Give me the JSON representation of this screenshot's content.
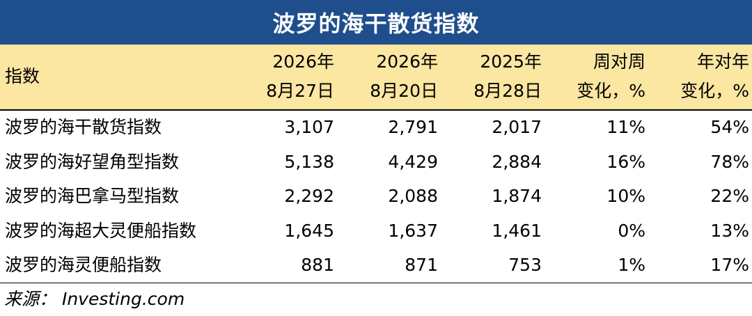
{
  "title": "波罗的海干散货指数",
  "header": {
    "label": "指数",
    "columns": [
      {
        "line1": "2026年",
        "line2": "8月27日"
      },
      {
        "line1": "2026年",
        "line2": "8月20日"
      },
      {
        "line1": "2025年",
        "line2": "8月28日"
      },
      {
        "line1": "周对周",
        "line2": "变化，%"
      },
      {
        "line1": "年对年",
        "line2": "变化，%"
      }
    ]
  },
  "rows": [
    {
      "name": "波罗的海干散货指数",
      "values": [
        "3,107",
        "2,791",
        "2,017",
        "11%",
        "54%"
      ]
    },
    {
      "name": "波罗的海好望角型指数",
      "values": [
        "5,138",
        "4,429",
        "2,884",
        "16%",
        "78%"
      ]
    },
    {
      "name": "波罗的海巴拿马型指数",
      "values": [
        "2,292",
        "2,088",
        "1,874",
        "10%",
        "22%"
      ]
    },
    {
      "name": "波罗的海超大灵便船指数",
      "values": [
        "1,645",
        "1,637",
        "1,461",
        "0%",
        "13%"
      ]
    },
    {
      "name": "波罗的海灵便船指数",
      "values": [
        "881",
        "871",
        "753",
        "1%",
        "17%"
      ]
    }
  ],
  "source": "来源： Investing.com",
  "colors": {
    "title_bg": "#1f4e8c",
    "header_bg": "#fbe6a2"
  }
}
